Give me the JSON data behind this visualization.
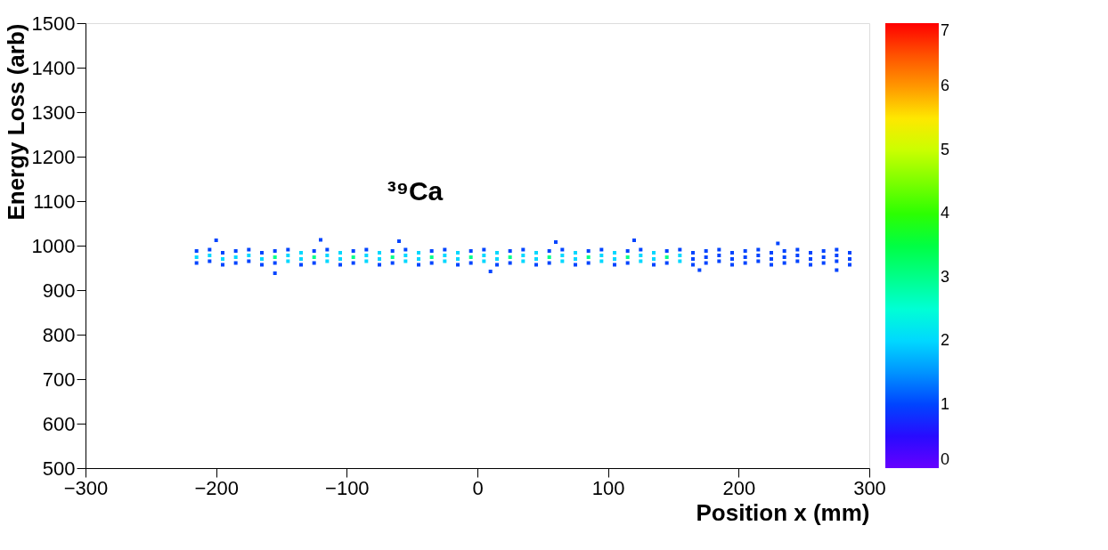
{
  "chart_data": {
    "type": "scatter",
    "xlabel": "Position x (mm)",
    "ylabel": "Energy Loss (arb)",
    "marker": "square",
    "xlim": [
      -300,
      300
    ],
    "xticks": [
      -300,
      -200,
      -100,
      0,
      100,
      200,
      300
    ],
    "ylim": [
      500,
      1500
    ],
    "yticks": [
      500,
      600,
      700,
      800,
      900,
      1000,
      1100,
      1200,
      1300,
      1400,
      1500
    ],
    "clim": [
      0,
      7
    ],
    "cticks": [
      0,
      1,
      2,
      3,
      4,
      5,
      6,
      7
    ],
    "grid": false,
    "annotations": [
      "³⁹Ca"
    ],
    "x": [
      -215,
      -215,
      -215,
      -205,
      -205,
      -205,
      -195,
      -195,
      -195,
      -185,
      -185,
      -185,
      -175,
      -175,
      -175,
      -165,
      -165,
      -165,
      -155,
      -155,
      -155,
      -145,
      -145,
      -145,
      -135,
      -135,
      -135,
      -125,
      -125,
      -125,
      -115,
      -115,
      -115,
      -105,
      -105,
      -105,
      -95,
      -95,
      -95,
      -85,
      -85,
      -85,
      -75,
      -75,
      -75,
      -65,
      -65,
      -65,
      -55,
      -55,
      -55,
      -45,
      -45,
      -45,
      -35,
      -35,
      -35,
      -25,
      -25,
      -25,
      -15,
      -15,
      -15,
      -5,
      -5,
      -5,
      5,
      5,
      5,
      15,
      15,
      15,
      25,
      25,
      25,
      35,
      35,
      35,
      45,
      45,
      45,
      55,
      55,
      55,
      65,
      65,
      65,
      75,
      75,
      75,
      85,
      85,
      85,
      95,
      95,
      95,
      105,
      105,
      105,
      115,
      115,
      115,
      125,
      125,
      125,
      135,
      135,
      135,
      145,
      145,
      145,
      155,
      155,
      155,
      165,
      165,
      165,
      175,
      175,
      175,
      185,
      185,
      185,
      195,
      195,
      195,
      205,
      205,
      205,
      215,
      215,
      215,
      225,
      225,
      225,
      235,
      235,
      235,
      245,
      245,
      245,
      255,
      255,
      255,
      265,
      265,
      265,
      275,
      275,
      275,
      285,
      285,
      285,
      -200,
      -155,
      -120,
      -60,
      10,
      60,
      120,
      170,
      230,
      275
    ],
    "values": [
      961,
      974,
      988,
      965,
      978,
      991,
      957,
      970,
      984,
      961,
      974,
      988,
      965,
      978,
      991,
      957,
      970,
      984,
      961,
      974,
      988,
      965,
      978,
      991,
      957,
      970,
      984,
      961,
      974,
      988,
      965,
      978,
      991,
      957,
      970,
      984,
      961,
      974,
      988,
      965,
      978,
      991,
      957,
      970,
      984,
      961,
      974,
      988,
      965,
      978,
      991,
      957,
      970,
      984,
      961,
      974,
      988,
      965,
      978,
      991,
      957,
      970,
      984,
      961,
      974,
      988,
      965,
      978,
      991,
      957,
      970,
      984,
      961,
      974,
      988,
      965,
      978,
      991,
      957,
      970,
      984,
      961,
      974,
      988,
      965,
      978,
      991,
      957,
      970,
      984,
      961,
      974,
      988,
      965,
      978,
      991,
      957,
      970,
      984,
      961,
      974,
      988,
      965,
      978,
      991,
      957,
      970,
      984,
      961,
      974,
      988,
      965,
      978,
      991,
      957,
      970,
      984,
      961,
      974,
      988,
      965,
      978,
      991,
      957,
      970,
      984,
      961,
      974,
      988,
      965,
      978,
      991,
      957,
      970,
      984,
      961,
      974,
      988,
      965,
      978,
      991,
      957,
      970,
      984,
      961,
      974,
      988,
      965,
      978,
      991,
      957,
      970,
      984,
      1012,
      938,
      1013,
      1010,
      942,
      1008,
      1012,
      945,
      1005,
      945
    ],
    "cvalues": [
      1,
      2,
      1,
      1,
      2,
      1,
      1,
      2,
      1,
      1,
      2,
      1,
      1,
      2,
      1,
      1,
      2,
      1,
      1,
      3,
      1,
      2,
      2,
      1,
      1,
      2,
      2,
      1,
      3,
      1,
      2,
      2,
      1,
      1,
      2,
      2,
      1,
      3,
      1,
      2,
      2,
      1,
      1,
      2,
      2,
      1,
      3,
      1,
      2,
      2,
      1,
      1,
      2,
      2,
      1,
      3,
      1,
      2,
      2,
      1,
      1,
      2,
      2,
      1,
      3,
      1,
      2,
      2,
      1,
      1,
      2,
      2,
      1,
      3,
      1,
      2,
      2,
      1,
      1,
      2,
      2,
      1,
      3,
      1,
      2,
      2,
      1,
      1,
      2,
      2,
      1,
      3,
      1,
      2,
      2,
      1,
      1,
      2,
      2,
      1,
      3,
      1,
      2,
      2,
      1,
      1,
      2,
      2,
      1,
      3,
      1,
      2,
      2,
      1,
      1,
      1,
      1,
      1,
      1,
      1,
      1,
      1,
      1,
      1,
      1,
      1,
      1,
      1,
      1,
      1,
      1,
      1,
      1,
      1,
      1,
      1,
      1,
      1,
      1,
      1,
      1,
      1,
      1,
      1,
      1,
      1,
      1,
      1,
      1,
      1,
      1,
      1,
      1,
      1,
      1,
      1,
      1,
      1,
      1,
      1,
      1,
      1,
      1
    ]
  }
}
